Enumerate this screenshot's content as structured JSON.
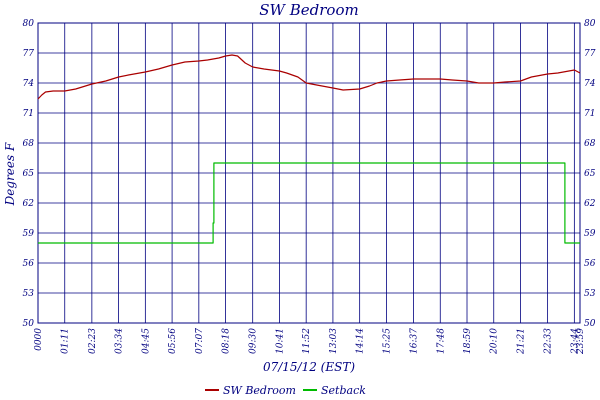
{
  "chart_data": {
    "type": "line",
    "title": "SW Bedroom",
    "xlabel": "07/15/12 (EST)",
    "ylabel": "Degrees F",
    "ylim": [
      50,
      80
    ],
    "yticks": [
      "80",
      "77",
      "74",
      "71",
      "68",
      "65",
      "62",
      "59",
      "56",
      "53",
      "50"
    ],
    "xticks": [
      "0000",
      "01:11",
      "02:23",
      "03:34",
      "04:45",
      "05:56",
      "07:07",
      "08:18",
      "09:30",
      "10:41",
      "11:52",
      "13:03",
      "14:14",
      "15:25",
      "16:37",
      "17:48",
      "18:59",
      "20:10",
      "21:21",
      "22:33",
      "23:44",
      "23:59"
    ],
    "grid": true,
    "legend_position": "bottom",
    "series": [
      {
        "name": "SW Bedroom",
        "color": "#aa0000",
        "x": [
          "0000",
          "00:10",
          "00:20",
          "00:40",
          "01:11",
          "01:40",
          "02:23",
          "03:00",
          "03:34",
          "04:00",
          "04:45",
          "05:20",
          "05:56",
          "06:30",
          "07:07",
          "07:30",
          "08:00",
          "08:18",
          "08:35",
          "08:50",
          "09:10",
          "09:30",
          "10:00",
          "10:41",
          "11:00",
          "11:30",
          "11:52",
          "12:20",
          "13:03",
          "13:30",
          "14:14",
          "14:40",
          "15:00",
          "15:25",
          "16:00",
          "16:37",
          "17:10",
          "17:48",
          "18:20",
          "18:59",
          "19:30",
          "20:10",
          "20:40",
          "21:21",
          "21:50",
          "22:33",
          "23:00",
          "23:44",
          "23:59"
        ],
        "values": [
          72.4,
          72.8,
          73.1,
          73.2,
          73.2,
          73.4,
          73.9,
          74.2,
          74.6,
          74.8,
          75.1,
          75.4,
          75.8,
          76.1,
          76.2,
          76.3,
          76.5,
          76.7,
          76.8,
          76.7,
          76.0,
          75.6,
          75.4,
          75.2,
          75.0,
          74.6,
          74.0,
          73.8,
          73.5,
          73.3,
          73.4,
          73.7,
          74.0,
          74.2,
          74.3,
          74.4,
          74.4,
          74.4,
          74.3,
          74.2,
          74.0,
          74.0,
          74.1,
          74.2,
          74.6,
          74.9,
          75.0,
          75.3,
          75.0
        ]
      },
      {
        "name": "Setback",
        "color": "#00bb00",
        "x": [
          "0000",
          "07:45",
          "07:45",
          "07:47",
          "07:47",
          "23:19",
          "23:19",
          "23:59"
        ],
        "values": [
          58,
          58,
          60,
          60,
          66,
          66,
          58,
          58
        ]
      }
    ]
  }
}
